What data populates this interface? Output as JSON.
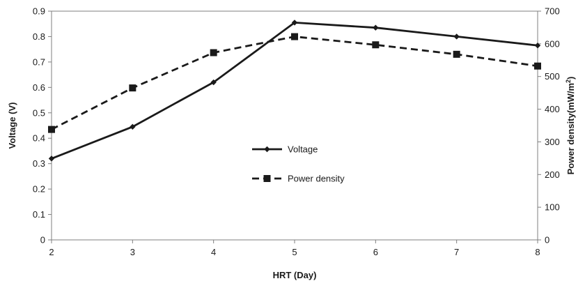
{
  "chart_data": {
    "type": "line",
    "xlabel": "HRT (Day)",
    "ylabel": "Voltage (V)",
    "y2label": "Power density(mW/m",
    "y2label_sup": "2",
    "y2label_end": ")",
    "x": [
      2,
      3,
      4,
      5,
      6,
      7,
      8
    ],
    "xlim": [
      2,
      8
    ],
    "ylim": [
      0,
      0.9
    ],
    "y2lim": [
      0,
      700
    ],
    "x_ticks": [
      "2",
      "3",
      "4",
      "5",
      "6",
      "7",
      "8"
    ],
    "y_ticks": [
      "0",
      "0.1",
      "0.2",
      "0.3",
      "0.4",
      "0.5",
      "0.6",
      "0.7",
      "0.8",
      "0.9"
    ],
    "y2_ticks": [
      "0",
      "100",
      "200",
      "300",
      "400",
      "500",
      "600",
      "700"
    ],
    "grid": false,
    "legend_position": "center",
    "series": [
      {
        "name": "Voltage",
        "axis": "left",
        "style": "solid",
        "marker": "diamond",
        "color": "#1a1a1a",
        "values": [
          0.32,
          0.445,
          0.62,
          0.855,
          0.835,
          0.8,
          0.765
        ]
      },
      {
        "name": "Power density",
        "axis": "right",
        "style": "dashed",
        "marker": "square",
        "color": "#1a1a1a",
        "values": [
          338,
          465,
          573,
          622,
          597,
          568,
          532
        ]
      }
    ]
  }
}
